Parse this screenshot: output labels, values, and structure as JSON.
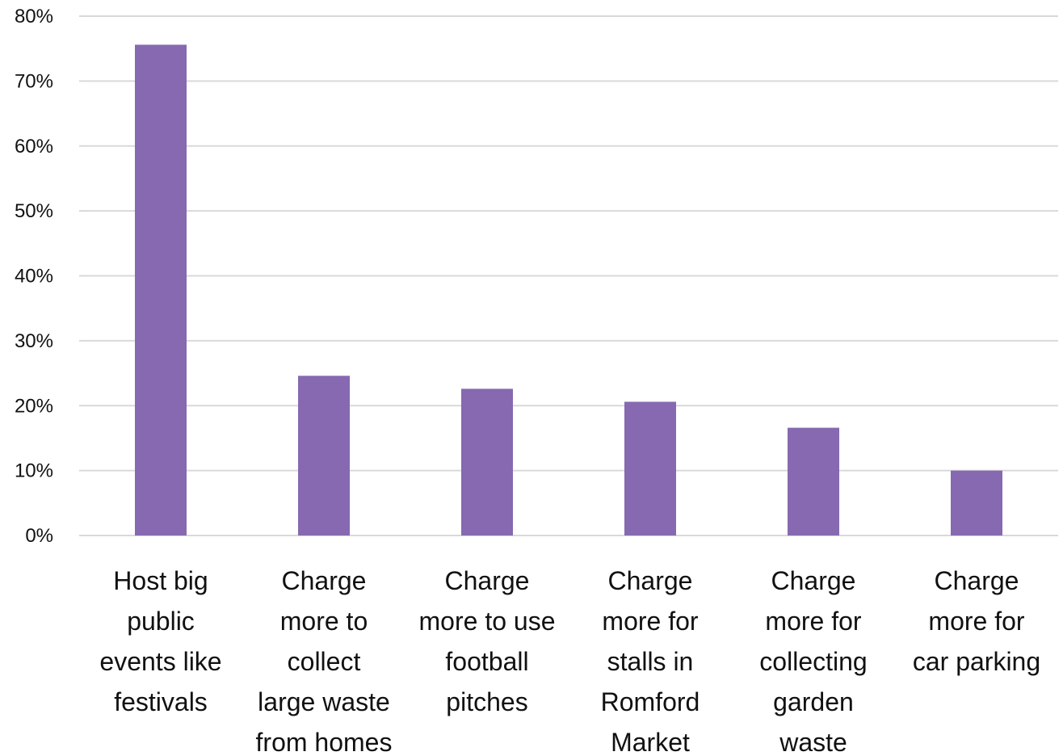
{
  "chart_data": {
    "type": "bar",
    "categories": [
      [
        "Host big",
        "public",
        "events like",
        "festivals"
      ],
      [
        "Charge",
        "more to",
        "collect",
        "large waste",
        "from homes"
      ],
      [
        "Charge",
        "more to use",
        "football",
        "pitches"
      ],
      [
        "Charge",
        "more for",
        "stalls in",
        "Romford",
        "Market"
      ],
      [
        "Charge",
        "more for",
        "collecting",
        "garden",
        "waste"
      ],
      [
        "Charge",
        "more for",
        "car parking"
      ]
    ],
    "values": [
      75.6,
      24.6,
      22.6,
      20.6,
      16.6,
      10.0
    ],
    "ylim": [
      0,
      80
    ],
    "yticks": [
      0,
      10,
      20,
      30,
      40,
      50,
      60,
      70,
      80
    ],
    "ytick_labels": [
      "0%",
      "10%",
      "20%",
      "30%",
      "40%",
      "50%",
      "60%",
      "70%",
      "80%"
    ],
    "title": "",
    "xlabel": "",
    "ylabel": "",
    "grid": true,
    "legend": "none",
    "bar_color": "#8669b0",
    "grid_color": "#d9d9d9"
  }
}
